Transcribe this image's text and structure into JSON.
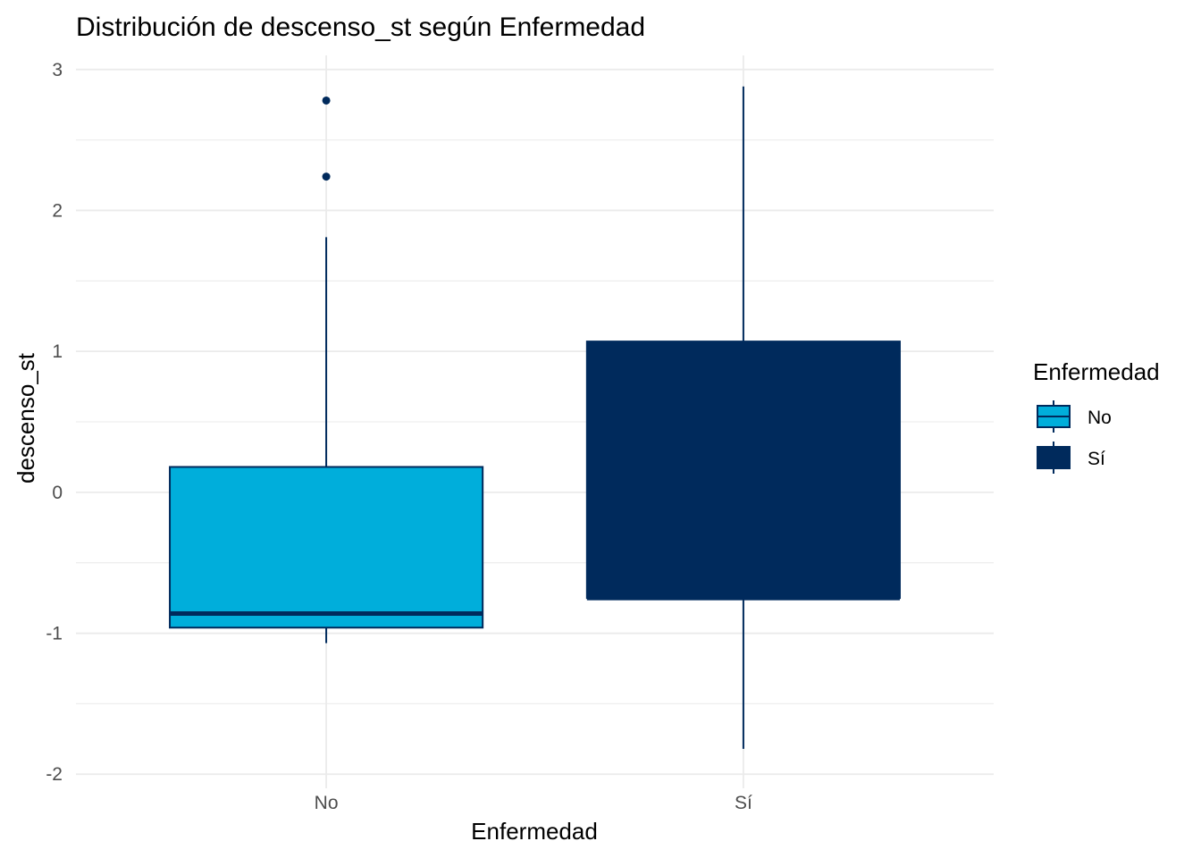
{
  "chart_data": {
    "type": "boxplot",
    "title": "Distribución de descenso_st según Enfermedad",
    "xlabel": "Enfermedad",
    "ylabel": "descenso_st",
    "categories": [
      "No",
      "Sí"
    ],
    "ylim": [
      -2.1,
      3.1
    ],
    "yticks": [
      -2,
      -1,
      0,
      1,
      2,
      3
    ],
    "yticklabels": [
      "-2",
      "-1",
      "0",
      "1",
      "2",
      "3"
    ],
    "grid": true,
    "legend": {
      "title": "Enfermedad",
      "position": "right",
      "entries": [
        "No",
        "Sí"
      ]
    },
    "series": [
      {
        "category": "No",
        "q1": -0.96,
        "median": -0.86,
        "q3": 0.18,
        "whisker_low": -1.07,
        "whisker_high": 1.81,
        "outliers": [
          2.24,
          2.78
        ],
        "color": "#00AEDB"
      },
      {
        "category": "Sí",
        "q1": -0.75,
        "median": -0.75,
        "q3": 1.07,
        "whisker_low": -1.82,
        "whisker_high": 2.88,
        "outliers": [],
        "color": "#002A5C"
      }
    ],
    "colors": {
      "line": "#002A5C",
      "No": "#00AEDB",
      "Sí": "#002A5C"
    }
  }
}
